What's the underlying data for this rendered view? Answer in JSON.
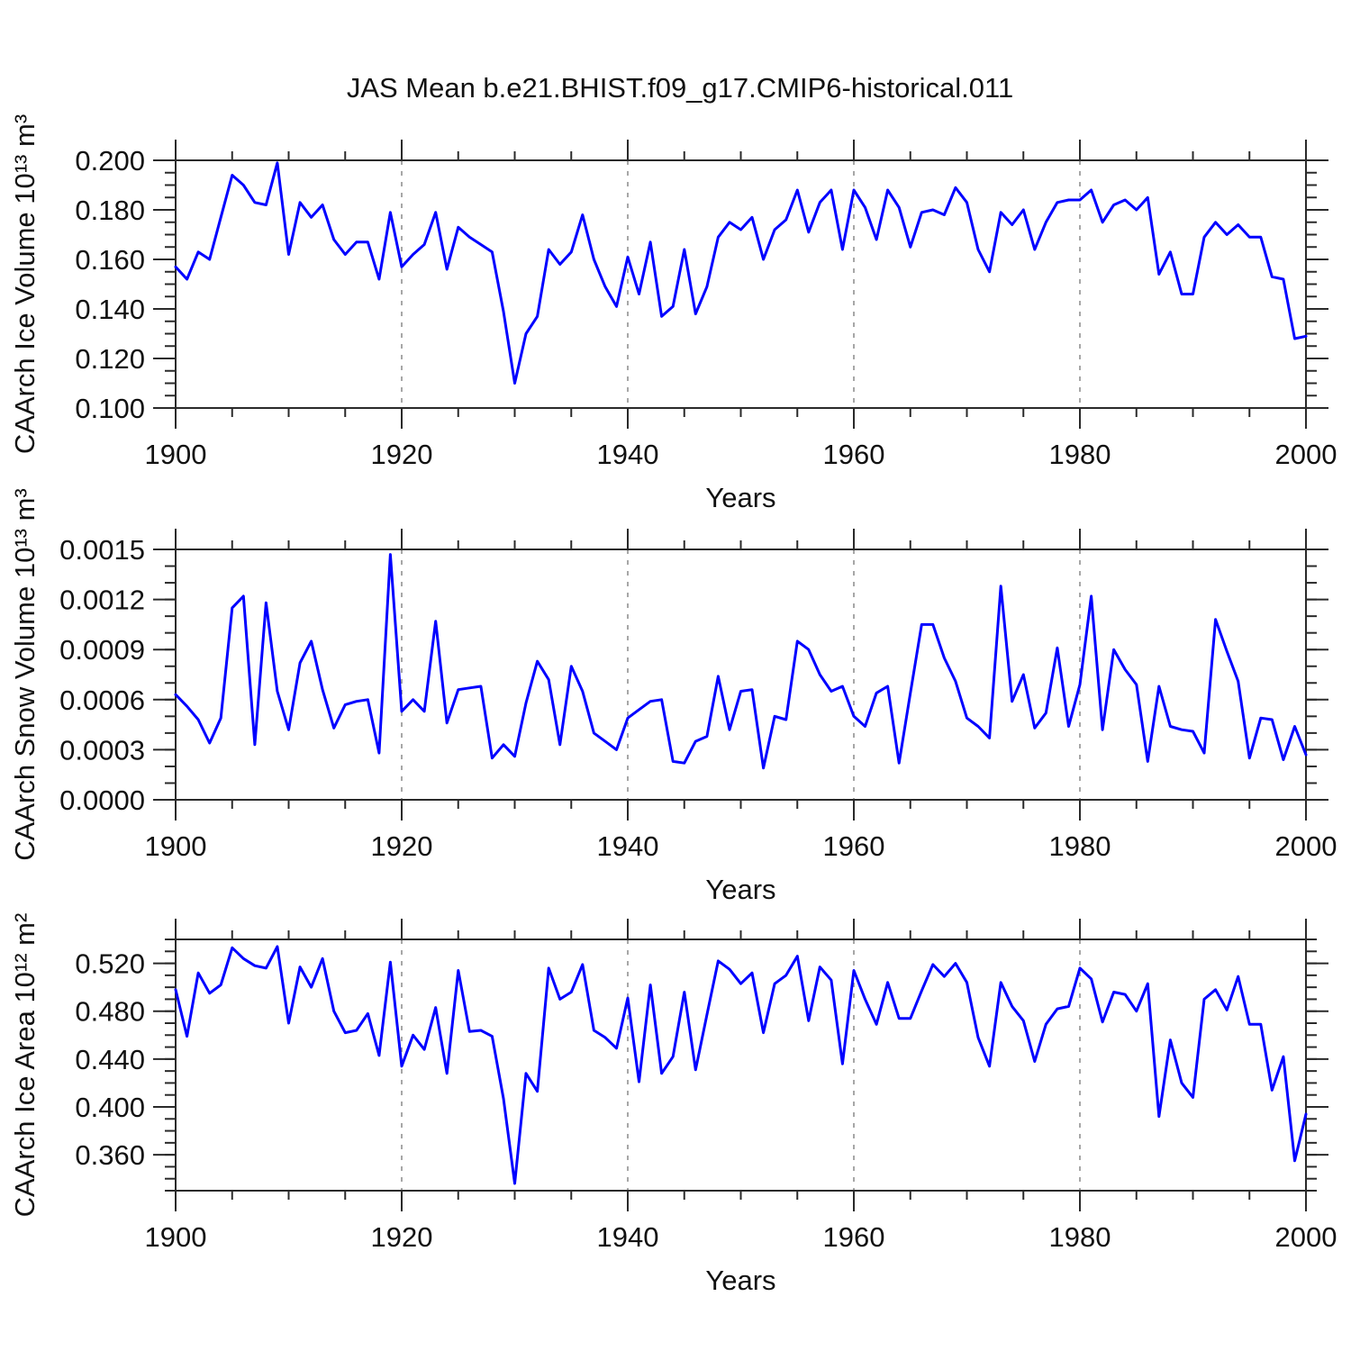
{
  "title": "JAS Mean b.e21.BHIST.f09_g17.CMIP6-historical.011",
  "styles": {
    "background": "#ffffff",
    "frame_color": "#2a2a2a",
    "grid_color": "#8a8a8a",
    "line_color": "#0000ff"
  },
  "chart_data": [
    {
      "type": "line",
      "id": "ice-volume",
      "ylabel": "CAArch Ice Volume 10¹³ m³",
      "xlabel": "Years",
      "ylim": [
        0.1,
        0.2
      ],
      "yticks": {
        "values": [
          0.1,
          0.12,
          0.14,
          0.16,
          0.18,
          0.2
        ],
        "labels": [
          "0.100",
          "0.120",
          "0.140",
          "0.160",
          "0.180",
          "0.200"
        ]
      },
      "yminor_step": 0.005,
      "xlim": [
        1900,
        2000
      ],
      "xticks": {
        "values": [
          1900,
          1920,
          1940,
          1960,
          1980,
          2000
        ],
        "labels": [
          "1900",
          "1920",
          "1940",
          "1960",
          "1980",
          "2000"
        ]
      },
      "xminor_step": 5,
      "gridline_years": [
        1920,
        1940,
        1960,
        1980
      ],
      "line_color": "#0000ff",
      "x_start": 1900,
      "x_step": 1,
      "values": [
        0.157,
        0.152,
        0.163,
        0.16,
        0.177,
        0.194,
        0.19,
        0.183,
        0.182,
        0.199,
        0.162,
        0.183,
        0.177,
        0.182,
        0.168,
        0.162,
        0.167,
        0.167,
        0.152,
        0.179,
        0.157,
        0.162,
        0.166,
        0.179,
        0.156,
        0.173,
        0.169,
        0.166,
        0.163,
        0.139,
        0.11,
        0.13,
        0.137,
        0.164,
        0.158,
        0.163,
        0.178,
        0.16,
        0.149,
        0.141,
        0.161,
        0.146,
        0.167,
        0.137,
        0.141,
        0.164,
        0.138,
        0.149,
        0.169,
        0.175,
        0.172,
        0.177,
        0.16,
        0.172,
        0.176,
        0.188,
        0.171,
        0.183,
        0.188,
        0.164,
        0.188,
        0.181,
        0.168,
        0.188,
        0.181,
        0.165,
        0.179,
        0.18,
        0.178,
        0.189,
        0.183,
        0.164,
        0.155,
        0.179,
        0.174,
        0.18,
        0.164,
        0.175,
        0.183,
        0.184,
        0.184,
        0.188,
        0.175,
        0.182,
        0.184,
        0.18,
        0.185,
        0.154,
        0.163,
        0.146,
        0.146,
        0.169,
        0.175,
        0.17,
        0.174,
        0.169,
        0.169,
        0.153,
        0.152,
        0.128,
        0.129
      ]
    },
    {
      "type": "line",
      "id": "snow-volume",
      "ylabel": "CAArch Snow Volume 10¹³ m³",
      "xlabel": "Years",
      "ylim": [
        0.0,
        0.0015
      ],
      "yticks": {
        "values": [
          0.0,
          0.0003,
          0.0006,
          0.0009,
          0.0012,
          0.0015
        ],
        "labels": [
          "0.0000",
          "0.0003",
          "0.0006",
          "0.0009",
          "0.0012",
          "0.0015"
        ]
      },
      "yminor_step": 0.0001,
      "xlim": [
        1900,
        2000
      ],
      "xticks": {
        "values": [
          1900,
          1920,
          1940,
          1960,
          1980,
          2000
        ],
        "labels": [
          "1900",
          "1920",
          "1940",
          "1960",
          "1980",
          "2000"
        ]
      },
      "xminor_step": 5,
      "gridline_years": [
        1920,
        1940,
        1960,
        1980
      ],
      "line_color": "#0000ff",
      "x_start": 1900,
      "x_step": 1,
      "values": [
        0.00063,
        0.00056,
        0.00048,
        0.00034,
        0.00049,
        0.00115,
        0.00122,
        0.00033,
        0.00118,
        0.00065,
        0.00042,
        0.00082,
        0.00095,
        0.00066,
        0.00043,
        0.00057,
        0.00059,
        0.0006,
        0.00028,
        0.00147,
        0.00053,
        0.0006,
        0.00053,
        0.00107,
        0.00046,
        0.00066,
        0.00067,
        0.00068,
        0.00025,
        0.00033,
        0.00026,
        0.00058,
        0.00083,
        0.00072,
        0.00033,
        0.0008,
        0.00065,
        0.0004,
        0.00035,
        0.0003,
        0.00049,
        0.00054,
        0.00059,
        0.0006,
        0.00023,
        0.00022,
        0.00035,
        0.00038,
        0.00074,
        0.00042,
        0.00065,
        0.00066,
        0.00019,
        0.0005,
        0.00048,
        0.00095,
        0.0009,
        0.00075,
        0.00065,
        0.00068,
        0.0005,
        0.00044,
        0.00064,
        0.00068,
        0.00022,
        0.00064,
        0.00105,
        0.00105,
        0.00085,
        0.00071,
        0.00049,
        0.00044,
        0.00037,
        0.00128,
        0.00059,
        0.00075,
        0.00043,
        0.00052,
        0.00091,
        0.00044,
        0.00069,
        0.00122,
        0.00042,
        0.0009,
        0.00078,
        0.00069,
        0.00023,
        0.00068,
        0.00044,
        0.00042,
        0.00041,
        0.00028,
        0.00108,
        0.00089,
        0.00071,
        0.00025,
        0.00049,
        0.00048,
        0.00024,
        0.00044,
        0.00027
      ]
    },
    {
      "type": "line",
      "id": "ice-area",
      "ylabel": "CAArch Ice Area 10¹² m²",
      "xlabel": "Years",
      "ylim": [
        0.33,
        0.54
      ],
      "yticks": {
        "values": [
          0.36,
          0.4,
          0.44,
          0.48,
          0.52
        ],
        "labels": [
          "0.360",
          "0.400",
          "0.440",
          "0.480",
          "0.520"
        ]
      },
      "yminor_step": 0.01,
      "xlim": [
        1900,
        2000
      ],
      "xticks": {
        "values": [
          1900,
          1920,
          1940,
          1960,
          1980,
          2000
        ],
        "labels": [
          "1900",
          "1920",
          "1940",
          "1960",
          "1980",
          "2000"
        ]
      },
      "xminor_step": 5,
      "gridline_years": [
        1920,
        1940,
        1960,
        1980
      ],
      "line_color": "#0000ff",
      "x_start": 1900,
      "x_step": 1,
      "values": [
        0.498,
        0.459,
        0.512,
        0.495,
        0.502,
        0.533,
        0.524,
        0.518,
        0.516,
        0.534,
        0.47,
        0.517,
        0.5,
        0.524,
        0.48,
        0.462,
        0.464,
        0.478,
        0.443,
        0.521,
        0.434,
        0.46,
        0.448,
        0.483,
        0.428,
        0.514,
        0.463,
        0.464,
        0.459,
        0.407,
        0.336,
        0.428,
        0.413,
        0.516,
        0.49,
        0.496,
        0.519,
        0.464,
        0.458,
        0.449,
        0.491,
        0.421,
        0.502,
        0.428,
        0.442,
        0.496,
        0.431,
        0.477,
        0.522,
        0.515,
        0.503,
        0.512,
        0.462,
        0.503,
        0.51,
        0.526,
        0.472,
        0.517,
        0.506,
        0.436,
        0.514,
        0.49,
        0.469,
        0.504,
        0.474,
        0.474,
        0.497,
        0.519,
        0.509,
        0.52,
        0.504,
        0.458,
        0.434,
        0.504,
        0.484,
        0.472,
        0.438,
        0.469,
        0.482,
        0.484,
        0.516,
        0.507,
        0.471,
        0.496,
        0.494,
        0.48,
        0.503,
        0.392,
        0.456,
        0.42,
        0.408,
        0.49,
        0.498,
        0.481,
        0.509,
        0.469,
        0.469,
        0.414,
        0.442,
        0.355,
        0.394
      ]
    }
  ]
}
